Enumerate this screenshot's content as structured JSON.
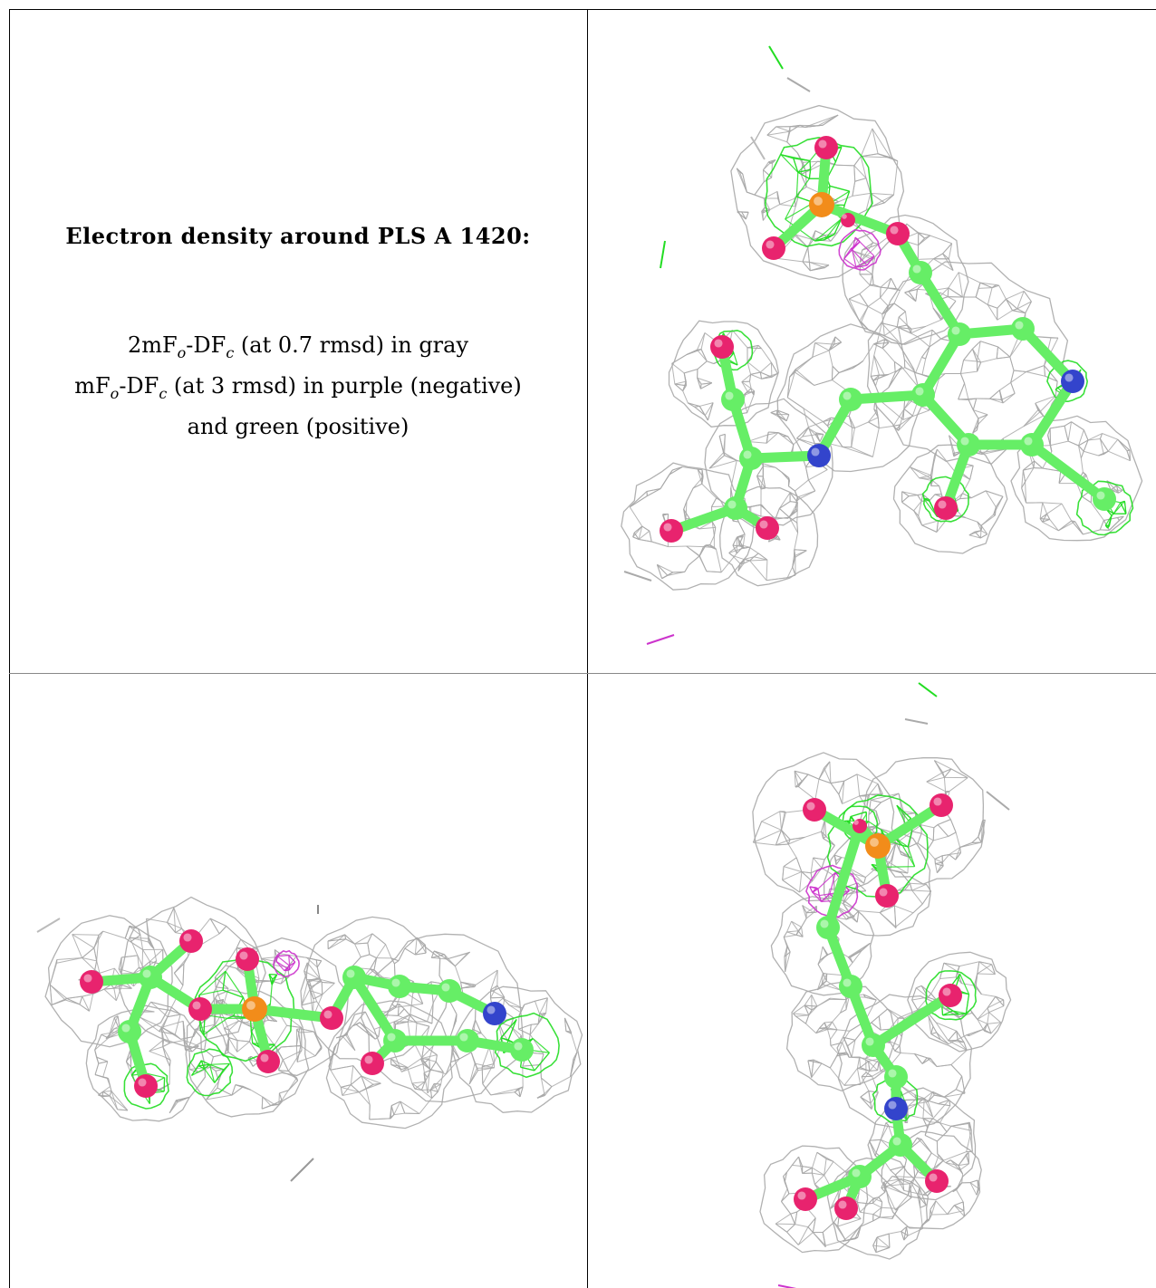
{
  "caption": {
    "title": "Electron density around PLS A 1420:",
    "line1": "2mFₒ-DFᶜ (at 0.7 rmsd) in gray",
    "line2": "mFₒ-DFᶜ (at 3 rmsd) in purple (negative)",
    "line3": "and green (positive)"
  },
  "legend_rows": [
    {
      "map": "2mF",
      "sub1": "o",
      "mid": "-DF",
      "sub2": "c",
      "rest": " (at 0.7 rmsd) in gray"
    },
    {
      "map": "mF",
      "sub1": "o",
      "mid": "-DF",
      "sub2": "c",
      "rest": " (at 3 rmsd) in purple (negative)"
    },
    {
      "map": "",
      "sub1": "",
      "mid": "",
      "sub2": "",
      "rest": "and green (positive)"
    }
  ],
  "colors": {
    "mesh_2fofc": "#a8a8a8",
    "mesh_fofc_positive": "#22dd22",
    "mesh_fofc_negative": "#cc33cc",
    "carbon": "#66ee66",
    "oxygen": "#e8236e",
    "nitrogen": "#3344cc",
    "phosphorus": "#f28c1a"
  },
  "views": [
    {
      "name": "view-top-right",
      "description_icon": "molecule-view"
    },
    {
      "name": "view-bottom-left",
      "description_icon": "molecule-view"
    },
    {
      "name": "view-bottom-right",
      "description_icon": "molecule-view"
    }
  ]
}
